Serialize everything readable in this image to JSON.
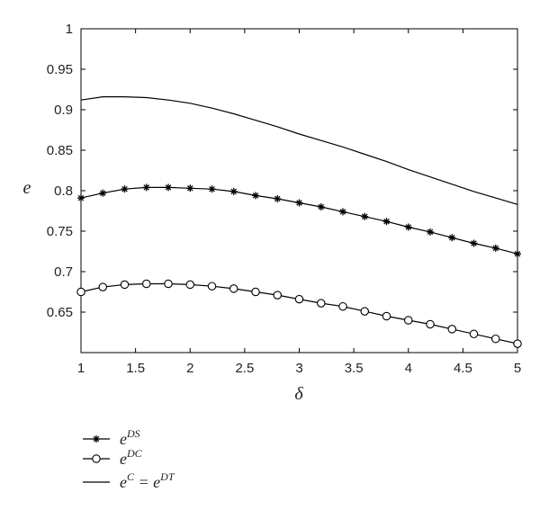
{
  "chart_data": {
    "type": "line",
    "xlabel": "δ",
    "ylabel": "e",
    "xlim": [
      1,
      5
    ],
    "ylim": [
      0.6,
      1
    ],
    "xticks": [
      "1",
      "1.5",
      "2",
      "2.5",
      "3",
      "3.5",
      "4",
      "4.5",
      "5"
    ],
    "yticks": [
      "0.65",
      "0.7",
      "0.75",
      "0.8",
      "0.85",
      "0.9",
      "0.95",
      "1"
    ],
    "grid": false,
    "legend_position": "bottom-left, below plot",
    "x": [
      1.0,
      1.2,
      1.4,
      1.6,
      1.8,
      2.0,
      2.2,
      2.4,
      2.6,
      2.8,
      3.0,
      3.2,
      3.4,
      3.6,
      3.8,
      4.0,
      4.2,
      4.4,
      4.6,
      4.8,
      5.0
    ],
    "series": [
      {
        "name": "e^DS",
        "label_base": "e",
        "label_sup": "DS",
        "marker": "asterisk",
        "values": [
          0.791,
          0.797,
          0.802,
          0.804,
          0.804,
          0.803,
          0.802,
          0.799,
          0.794,
          0.79,
          0.785,
          0.78,
          0.774,
          0.768,
          0.762,
          0.755,
          0.749,
          0.742,
          0.735,
          0.729,
          0.722
        ]
      },
      {
        "name": "e^DC",
        "label_base": "e",
        "label_sup": "DC",
        "marker": "circle",
        "values": [
          0.675,
          0.681,
          0.684,
          0.685,
          0.685,
          0.684,
          0.682,
          0.679,
          0.675,
          0.671,
          0.666,
          0.661,
          0.657,
          0.651,
          0.645,
          0.64,
          0.635,
          0.629,
          0.623,
          0.617,
          0.611
        ]
      },
      {
        "name": "e^C = e^DT",
        "label_parts": [
          "e",
          "C",
          " = e",
          "DT"
        ],
        "marker": "none",
        "values": [
          0.912,
          0.916,
          0.916,
          0.915,
          0.912,
          0.908,
          0.902,
          0.895,
          0.887,
          0.879,
          0.87,
          0.862,
          0.854,
          0.845,
          0.836,
          0.826,
          0.817,
          0.808,
          0.799,
          0.791,
          0.783
        ]
      }
    ]
  }
}
